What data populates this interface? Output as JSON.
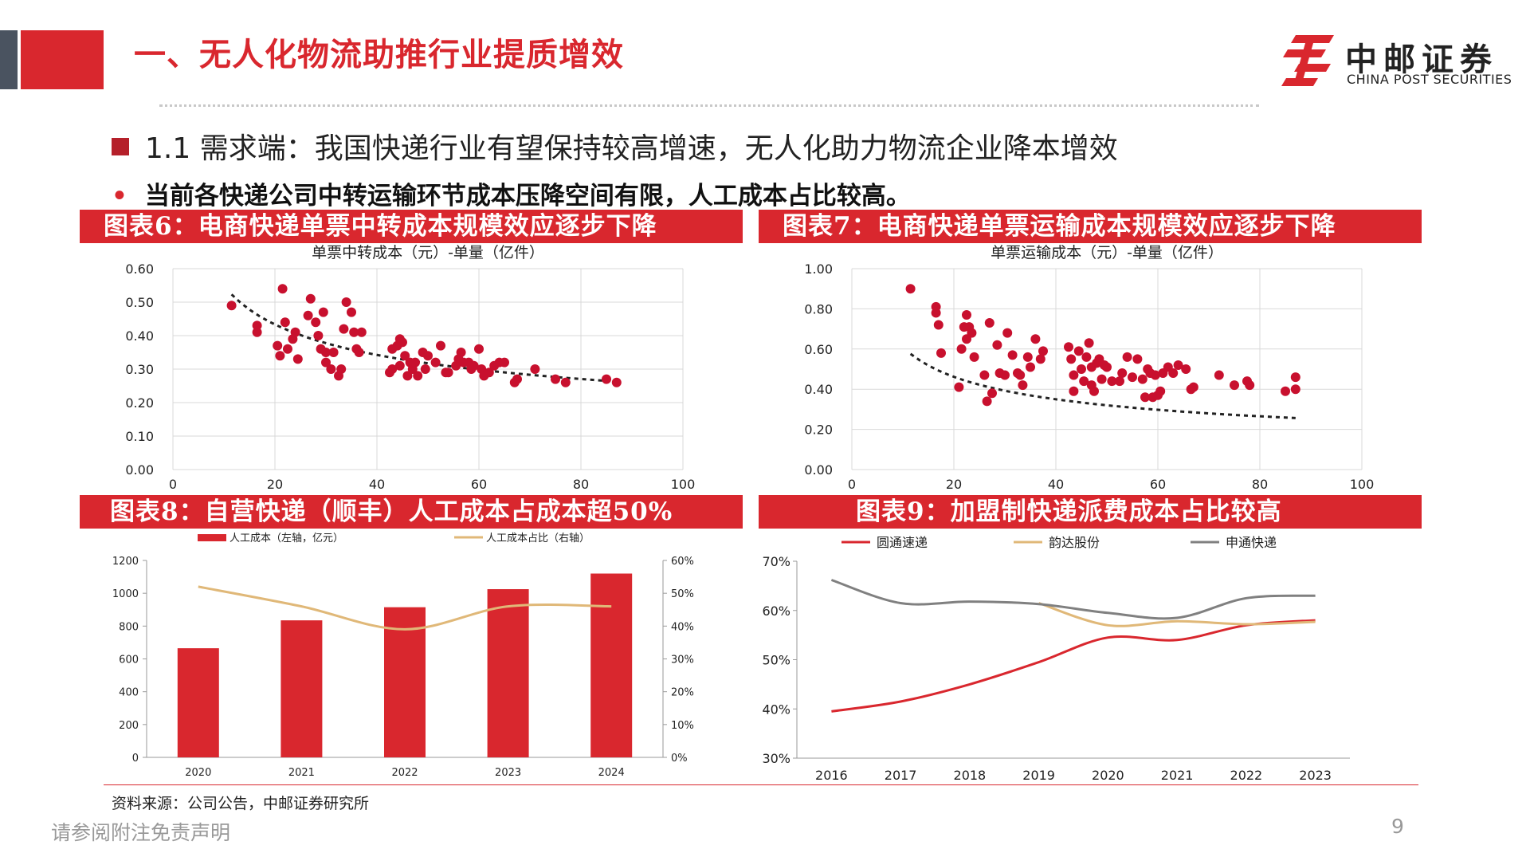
{
  "header": {
    "title": "一、无人化物流助推行业提质增效",
    "logo_cn": "中邮证券",
    "logo_en": "CHINA POST SECURITIES"
  },
  "section": {
    "heading": "1.1 需求端：我国快递行业有望保持较高增速，无人化助力物流企业降本增效",
    "bullet": "当前各快递公司中转运输环节成本压降空间有限，人工成本占比较高。"
  },
  "colors": {
    "accent": "#d9272e",
    "gold": "#e0b878",
    "gray": "#808080"
  },
  "chart_data": [
    {
      "id": "fig6",
      "banner": "图表6：电商快递单票中转成本规模效应逐步下降",
      "type": "scatter",
      "title": "单票中转成本（元）-单量（亿件）",
      "xlim": [
        0,
        100
      ],
      "xticks": [
        "0",
        "20",
        "40",
        "60",
        "80",
        "100"
      ],
      "ylim": [
        0,
        0.6
      ],
      "yticks": [
        "0.00",
        "0.10",
        "0.20",
        "0.30",
        "0.40",
        "0.50",
        "0.60"
      ],
      "trend": {
        "a": 1.2,
        "b": -0.34
      },
      "points": [
        [
          11.5,
          0.49
        ],
        [
          16.5,
          0.43
        ],
        [
          16.5,
          0.41
        ],
        [
          20.5,
          0.37
        ],
        [
          21.5,
          0.54
        ],
        [
          21,
          0.34
        ],
        [
          22,
          0.44
        ],
        [
          22.5,
          0.36
        ],
        [
          23.5,
          0.39
        ],
        [
          24,
          0.41
        ],
        [
          24.5,
          0.33
        ],
        [
          26.5,
          0.46
        ],
        [
          27,
          0.51
        ],
        [
          28,
          0.44
        ],
        [
          28.5,
          0.4
        ],
        [
          29.5,
          0.47
        ],
        [
          29,
          0.36
        ],
        [
          30,
          0.32
        ],
        [
          30,
          0.35
        ],
        [
          31,
          0.3
        ],
        [
          31.5,
          0.35
        ],
        [
          32.5,
          0.28
        ],
        [
          33,
          0.3
        ],
        [
          33.5,
          0.42
        ],
        [
          34,
          0.5
        ],
        [
          35,
          0.47
        ],
        [
          35.5,
          0.41
        ],
        [
          36,
          0.36
        ],
        [
          37,
          0.41
        ],
        [
          36.5,
          0.35
        ],
        [
          42.5,
          0.29
        ],
        [
          43,
          0.36
        ],
        [
          43,
          0.3
        ],
        [
          44,
          0.37
        ],
        [
          44.5,
          0.31
        ],
        [
          44.5,
          0.39
        ],
        [
          45,
          0.38
        ],
        [
          45.5,
          0.34
        ],
        [
          46,
          0.28
        ],
        [
          46.5,
          0.32
        ],
        [
          47,
          0.3
        ],
        [
          47.5,
          0.32
        ],
        [
          48,
          0.28
        ],
        [
          49,
          0.35
        ],
        [
          49.5,
          0.3
        ],
        [
          50,
          0.34
        ],
        [
          51.5,
          0.32
        ],
        [
          52.5,
          0.37
        ],
        [
          53.5,
          0.29
        ],
        [
          54,
          0.29
        ],
        [
          55.5,
          0.31
        ],
        [
          56,
          0.33
        ],
        [
          56.5,
          0.35
        ],
        [
          57,
          0.32
        ],
        [
          58,
          0.32
        ],
        [
          58.5,
          0.3
        ],
        [
          59,
          0.31
        ],
        [
          60,
          0.36
        ],
        [
          60.5,
          0.3
        ],
        [
          61,
          0.28
        ],
        [
          62,
          0.29
        ],
        [
          63,
          0.31
        ],
        [
          64,
          0.32
        ],
        [
          65,
          0.32
        ],
        [
          67,
          0.26
        ],
        [
          67.5,
          0.27
        ],
        [
          71,
          0.3
        ],
        [
          75,
          0.27
        ],
        [
          77,
          0.26
        ],
        [
          85,
          0.27
        ],
        [
          87,
          0.26
        ]
      ]
    },
    {
      "id": "fig7",
      "banner": "图表7：电商快递单票运输成本规模效应逐步下降",
      "type": "scatter",
      "title": "单票运输成本（元）-单量（亿件）",
      "xlim": [
        0,
        100
      ],
      "xticks": [
        "0",
        "20",
        "40",
        "60",
        "80",
        "100"
      ],
      "ylim": [
        0,
        1.0
      ],
      "yticks": [
        "0.00",
        "0.20",
        "0.40",
        "0.60",
        "0.80",
        "1.00"
      ],
      "trend": {
        "a": 1.53,
        "b": -0.4
      },
      "points": [
        [
          11.5,
          0.9
        ],
        [
          16.5,
          0.81
        ],
        [
          16.5,
          0.78
        ],
        [
          17,
          0.72
        ],
        [
          17.5,
          0.58
        ],
        [
          21,
          0.41
        ],
        [
          21.5,
          0.6
        ],
        [
          22,
          0.71
        ],
        [
          22.5,
          0.77
        ],
        [
          22.5,
          0.65
        ],
        [
          23,
          0.71
        ],
        [
          23.5,
          0.68
        ],
        [
          24,
          0.56
        ],
        [
          26,
          0.47
        ],
        [
          26.5,
          0.34
        ],
        [
          27,
          0.73
        ],
        [
          27.5,
          0.38
        ],
        [
          28.5,
          0.62
        ],
        [
          29,
          0.48
        ],
        [
          30,
          0.47
        ],
        [
          30.5,
          0.68
        ],
        [
          31.5,
          0.57
        ],
        [
          32.5,
          0.48
        ],
        [
          33,
          0.47
        ],
        [
          33.5,
          0.42
        ],
        [
          34.5,
          0.56
        ],
        [
          35,
          0.51
        ],
        [
          36,
          0.65
        ],
        [
          37,
          0.55
        ],
        [
          37.5,
          0.59
        ],
        [
          42.5,
          0.61
        ],
        [
          43,
          0.55
        ],
        [
          43.5,
          0.47
        ],
        [
          43.5,
          0.39
        ],
        [
          44.5,
          0.59
        ],
        [
          45,
          0.5
        ],
        [
          45.5,
          0.44
        ],
        [
          46,
          0.56
        ],
        [
          46.5,
          0.63
        ],
        [
          47,
          0.51
        ],
        [
          47,
          0.42
        ],
        [
          47.5,
          0.39
        ],
        [
          48,
          0.53
        ],
        [
          48.5,
          0.55
        ],
        [
          49,
          0.45
        ],
        [
          49.5,
          0.52
        ],
        [
          50,
          0.51
        ],
        [
          51,
          0.44
        ],
        [
          52.5,
          0.44
        ],
        [
          53,
          0.48
        ],
        [
          54,
          0.56
        ],
        [
          55,
          0.46
        ],
        [
          56,
          0.55
        ],
        [
          57,
          0.45
        ],
        [
          57.5,
          0.36
        ],
        [
          58,
          0.5
        ],
        [
          58.5,
          0.48
        ],
        [
          59,
          0.36
        ],
        [
          59.5,
          0.47
        ],
        [
          60,
          0.37
        ],
        [
          60.5,
          0.39
        ],
        [
          61,
          0.48
        ],
        [
          62,
          0.51
        ],
        [
          63,
          0.48
        ],
        [
          64,
          0.52
        ],
        [
          65.5,
          0.5
        ],
        [
          66.5,
          0.4
        ],
        [
          67,
          0.41
        ],
        [
          72,
          0.47
        ],
        [
          75,
          0.42
        ],
        [
          77.5,
          0.44
        ],
        [
          78,
          0.42
        ],
        [
          85,
          0.39
        ],
        [
          87,
          0.4
        ],
        [
          87,
          0.46
        ]
      ]
    },
    {
      "id": "fig8",
      "banner": "图表8：自营快递（顺丰）人工成本占成本超50%",
      "type": "bar",
      "categories": [
        "2020",
        "2021",
        "2022",
        "2023",
        "2024"
      ],
      "series": [
        {
          "name": "人工成本（左轴，亿元）",
          "type": "bar",
          "values": [
            665,
            835,
            915,
            1025,
            1120
          ]
        },
        {
          "name": "人工成本占比（右轴）",
          "type": "line",
          "axis": "right",
          "values": [
            0.52,
            0.46,
            0.39,
            0.46,
            0.46
          ]
        }
      ],
      "ylim": [
        0,
        1200
      ],
      "yticks": [
        "0",
        "200",
        "400",
        "600",
        "800",
        "1000",
        "1200"
      ],
      "y2lim": [
        0,
        0.6
      ],
      "y2ticks": [
        "0%",
        "10%",
        "20%",
        "30%",
        "40%",
        "50%",
        "60%"
      ],
      "legend": "top"
    },
    {
      "id": "fig9",
      "banner": "图表9：加盟制快递派费成本占比较高",
      "type": "line",
      "categories": [
        "2016",
        "2017",
        "2018",
        "2019",
        "2020",
        "2021",
        "2022",
        "2023"
      ],
      "series": [
        {
          "name": "圆通速递",
          "color": "#d9272e",
          "values": [
            0.395,
            0.415,
            0.45,
            0.495,
            0.545,
            0.54,
            0.57,
            0.58
          ]
        },
        {
          "name": "韵达股份",
          "color": "#e0b878",
          "values": [
            null,
            null,
            null,
            0.615,
            0.57,
            0.578,
            0.572,
            0.577
          ]
        },
        {
          "name": "申通快递",
          "color": "#808080",
          "values": [
            0.662,
            0.615,
            0.618,
            0.613,
            0.595,
            0.585,
            0.625,
            0.63
          ]
        }
      ],
      "ylim": [
        0.3,
        0.7
      ],
      "yticks": [
        "30%",
        "40%",
        "50%",
        "60%",
        "70%"
      ],
      "legend": "top"
    }
  ],
  "footer": {
    "source": "资料来源：公司公告，中邮证券研究所",
    "disclaimer": "请参阅附注免责声明",
    "page": "9"
  }
}
